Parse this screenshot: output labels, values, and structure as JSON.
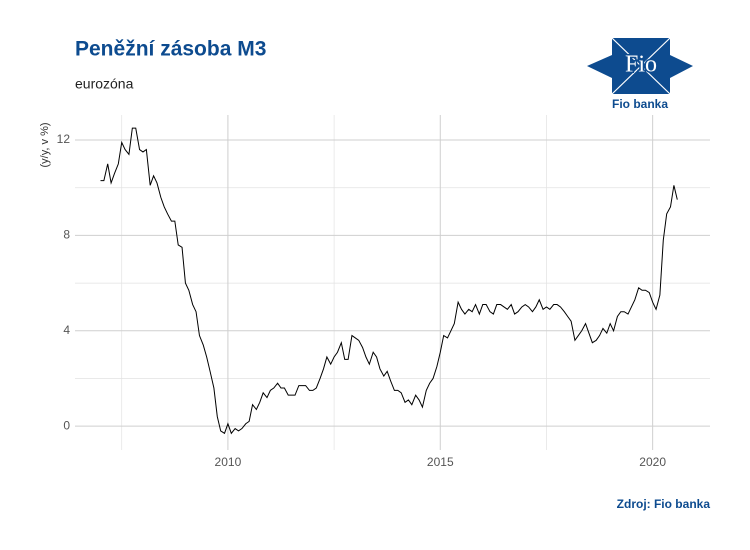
{
  "chart_data": {
    "type": "line",
    "title": "Peněžní zásoba M3",
    "subtitle": "eurozóna",
    "y_label": "(y/y, v %)",
    "source": "Zdroj: Fio banka",
    "logo_text": "Fio",
    "logo_caption": "Fio banka",
    "xlim": [
      2006.4,
      2021.35
    ],
    "ylim": [
      -1,
      13.05
    ],
    "xticks": [
      2010,
      2015,
      2020
    ],
    "yticks": [
      0,
      4,
      8,
      12
    ],
    "minor_xticks": [
      2007.5,
      2012.5,
      2017.5
    ],
    "minor_yticks": [
      2,
      6,
      10
    ],
    "grid": true,
    "series": [
      {
        "color": "#000000",
        "x": [
          2007,
          2007.08,
          2007.17,
          2007.25,
          2007.33,
          2007.42,
          2007.5,
          2007.58,
          2007.67,
          2007.75,
          2007.83,
          2007.92,
          2008,
          2008.08,
          2008.17,
          2008.25,
          2008.33,
          2008.42,
          2008.5,
          2008.58,
          2008.67,
          2008.75,
          2008.83,
          2008.92,
          2009,
          2009.08,
          2009.17,
          2009.25,
          2009.33,
          2009.42,
          2009.5,
          2009.58,
          2009.67,
          2009.75,
          2009.83,
          2009.92,
          2010,
          2010.08,
          2010.17,
          2010.25,
          2010.33,
          2010.42,
          2010.5,
          2010.58,
          2010.67,
          2010.75,
          2010.83,
          2010.92,
          2011,
          2011.08,
          2011.17,
          2011.25,
          2011.33,
          2011.42,
          2011.5,
          2011.58,
          2011.67,
          2011.75,
          2011.83,
          2011.92,
          2012,
          2012.08,
          2012.17,
          2012.25,
          2012.33,
          2012.42,
          2012.5,
          2012.58,
          2012.67,
          2012.75,
          2012.83,
          2012.92,
          2013,
          2013.08,
          2013.17,
          2013.25,
          2013.33,
          2013.42,
          2013.5,
          2013.58,
          2013.67,
          2013.75,
          2013.83,
          2013.92,
          2014,
          2014.08,
          2014.17,
          2014.25,
          2014.33,
          2014.42,
          2014.5,
          2014.58,
          2014.67,
          2014.75,
          2014.83,
          2014.92,
          2015,
          2015.08,
          2015.17,
          2015.25,
          2015.33,
          2015.42,
          2015.5,
          2015.58,
          2015.67,
          2015.75,
          2015.83,
          2015.92,
          2016,
          2016.08,
          2016.17,
          2016.25,
          2016.33,
          2016.42,
          2016.5,
          2016.58,
          2016.67,
          2016.75,
          2016.83,
          2016.92,
          2017,
          2017.08,
          2017.17,
          2017.25,
          2017.33,
          2017.42,
          2017.5,
          2017.58,
          2017.67,
          2017.75,
          2017.83,
          2017.92,
          2018,
          2018.08,
          2018.17,
          2018.25,
          2018.33,
          2018.42,
          2018.5,
          2018.58,
          2018.67,
          2018.75,
          2018.83,
          2018.92,
          2019,
          2019.08,
          2019.17,
          2019.25,
          2019.33,
          2019.42,
          2019.5,
          2019.58,
          2019.67,
          2019.75,
          2019.83,
          2019.92,
          2020,
          2020.08,
          2020.17,
          2020.25,
          2020.33,
          2020.42,
          2020.5,
          2020.58
        ],
        "values": [
          10.3,
          10.3,
          11.0,
          10.2,
          10.6,
          11.0,
          11.9,
          11.6,
          11.4,
          12.5,
          12.5,
          11.6,
          11.5,
          11.6,
          10.1,
          10.5,
          10.2,
          9.6,
          9.2,
          8.9,
          8.6,
          8.6,
          7.6,
          7.5,
          6.0,
          5.7,
          5.1,
          4.8,
          3.8,
          3.4,
          2.9,
          2.3,
          1.6,
          0.4,
          -0.2,
          -0.3,
          0.1,
          -0.3,
          -0.1,
          -0.2,
          -0.1,
          0.1,
          0.2,
          0.9,
          0.7,
          1.0,
          1.4,
          1.2,
          1.5,
          1.6,
          1.8,
          1.6,
          1.6,
          1.3,
          1.3,
          1.3,
          1.7,
          1.7,
          1.7,
          1.5,
          1.5,
          1.6,
          2.0,
          2.4,
          2.9,
          2.6,
          2.9,
          3.1,
          3.5,
          2.8,
          2.8,
          3.8,
          3.7,
          3.6,
          3.3,
          2.9,
          2.6,
          3.1,
          2.9,
          2.4,
          2.1,
          2.3,
          1.9,
          1.5,
          1.5,
          1.4,
          1.0,
          1.1,
          0.9,
          1.3,
          1.1,
          0.8,
          1.5,
          1.8,
          2.0,
          2.5,
          3.1,
          3.8,
          3.7,
          4.0,
          4.3,
          5.2,
          4.9,
          4.7,
          4.9,
          4.8,
          5.1,
          4.7,
          5.1,
          5.1,
          4.8,
          4.7,
          5.1,
          5.1,
          5.0,
          4.9,
          5.1,
          4.7,
          4.8,
          5.0,
          5.1,
          5.0,
          4.8,
          5.0,
          5.3,
          4.9,
          5.0,
          4.9,
          5.1,
          5.1,
          5.0,
          4.8,
          4.6,
          4.4,
          3.6,
          3.8,
          4.0,
          4.3,
          3.9,
          3.5,
          3.6,
          3.8,
          4.1,
          3.9,
          4.3,
          4.0,
          4.6,
          4.8,
          4.8,
          4.7,
          5.0,
          5.3,
          5.8,
          5.7,
          5.7,
          5.6,
          5.2,
          4.9,
          5.5,
          7.8,
          8.9,
          9.2,
          10.1,
          9.5
        ]
      }
    ]
  }
}
